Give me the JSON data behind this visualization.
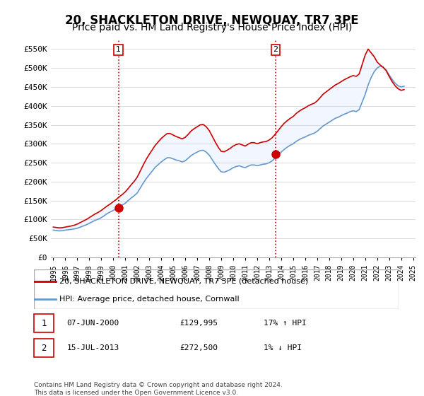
{
  "title": "20, SHACKLETON DRIVE, NEWQUAY, TR7 3PE",
  "subtitle": "Price paid vs. HM Land Registry's House Price Index (HPI)",
  "title_fontsize": 12,
  "subtitle_fontsize": 10,
  "ylim": [
    0,
    575000
  ],
  "yticks": [
    0,
    50000,
    100000,
    150000,
    200000,
    250000,
    300000,
    350000,
    400000,
    450000,
    500000,
    550000
  ],
  "ytick_labels": [
    "£0",
    "£50K",
    "£100K",
    "£150K",
    "£200K",
    "£250K",
    "£300K",
    "£350K",
    "£400K",
    "£450K",
    "£500K",
    "£550K"
  ],
  "xtick_years": [
    1995,
    1996,
    1997,
    1998,
    1999,
    2000,
    2001,
    2002,
    2003,
    2004,
    2005,
    2006,
    2007,
    2008,
    2009,
    2010,
    2011,
    2012,
    2013,
    2014,
    2015,
    2016,
    2017,
    2018,
    2019,
    2020,
    2021,
    2022,
    2023,
    2024,
    2025
  ],
  "red_line_color": "#cc0000",
  "blue_line_color": "#6699cc",
  "fill_color": "#cce0ff",
  "vline_color": "#cc0000",
  "vline_style": ":",
  "transaction1_x": 2000.44,
  "transaction1_y": 129995,
  "transaction1_label": "1",
  "transaction2_x": 2013.54,
  "transaction2_y": 272500,
  "transaction2_label": "2",
  "marker_color": "#cc0000",
  "marker_size": 8,
  "legend_label_red": "20, SHACKLETON DRIVE, NEWQUAY, TR7 3PE (detached house)",
  "legend_label_blue": "HPI: Average price, detached house, Cornwall",
  "table_rows": [
    {
      "num": "1",
      "date": "07-JUN-2000",
      "price": "£129,995",
      "change": "17% ↑ HPI"
    },
    {
      "num": "2",
      "date": "15-JUL-2013",
      "price": "£272,500",
      "change": "1% ↓ HPI"
    }
  ],
  "footer_text": "Contains HM Land Registry data © Crown copyright and database right 2024.\nThis data is licensed under the Open Government Licence v3.0.",
  "background_color": "#ffffff",
  "grid_color": "#dddddd",
  "hpi_data_x": [
    1995.0,
    1995.25,
    1995.5,
    1995.75,
    1996.0,
    1996.25,
    1996.5,
    1996.75,
    1997.0,
    1997.25,
    1997.5,
    1997.75,
    1998.0,
    1998.25,
    1998.5,
    1998.75,
    1999.0,
    1999.25,
    1999.5,
    1999.75,
    2000.0,
    2000.25,
    2000.5,
    2000.75,
    2001.0,
    2001.25,
    2001.5,
    2001.75,
    2002.0,
    2002.25,
    2002.5,
    2002.75,
    2003.0,
    2003.25,
    2003.5,
    2003.75,
    2004.0,
    2004.25,
    2004.5,
    2004.75,
    2005.0,
    2005.25,
    2005.5,
    2005.75,
    2006.0,
    2006.25,
    2006.5,
    2006.75,
    2007.0,
    2007.25,
    2007.5,
    2007.75,
    2008.0,
    2008.25,
    2008.5,
    2008.75,
    2009.0,
    2009.25,
    2009.5,
    2009.75,
    2010.0,
    2010.25,
    2010.5,
    2010.75,
    2011.0,
    2011.25,
    2011.5,
    2011.75,
    2012.0,
    2012.25,
    2012.5,
    2012.75,
    2013.0,
    2013.25,
    2013.5,
    2013.75,
    2014.0,
    2014.25,
    2014.5,
    2014.75,
    2015.0,
    2015.25,
    2015.5,
    2015.75,
    2016.0,
    2016.25,
    2016.5,
    2016.75,
    2017.0,
    2017.25,
    2017.5,
    2017.75,
    2018.0,
    2018.25,
    2018.5,
    2018.75,
    2019.0,
    2019.25,
    2019.5,
    2019.75,
    2020.0,
    2020.25,
    2020.5,
    2020.75,
    2021.0,
    2021.25,
    2021.5,
    2021.75,
    2022.0,
    2022.25,
    2022.5,
    2022.75,
    2023.0,
    2023.25,
    2023.5,
    2023.75,
    2024.0,
    2024.25
  ],
  "hpi_data_y": [
    72000,
    71000,
    70000,
    70500,
    72000,
    73000,
    74000,
    75000,
    77000,
    80000,
    83000,
    86000,
    90000,
    94000,
    98000,
    101000,
    105000,
    110000,
    116000,
    120000,
    124000,
    128000,
    133000,
    138000,
    143000,
    150000,
    157000,
    163000,
    170000,
    183000,
    196000,
    208000,
    218000,
    228000,
    238000,
    245000,
    252000,
    258000,
    263000,
    263000,
    260000,
    257000,
    255000,
    252000,
    255000,
    262000,
    269000,
    274000,
    278000,
    282000,
    283000,
    278000,
    270000,
    258000,
    246000,
    235000,
    226000,
    225000,
    228000,
    232000,
    237000,
    240000,
    242000,
    239000,
    237000,
    241000,
    244000,
    244000,
    242000,
    244000,
    246000,
    247000,
    250000,
    255000,
    262000,
    270000,
    278000,
    285000,
    291000,
    296000,
    300000,
    306000,
    311000,
    315000,
    318000,
    322000,
    325000,
    328000,
    333000,
    340000,
    347000,
    352000,
    357000,
    362000,
    367000,
    370000,
    374000,
    378000,
    381000,
    385000,
    387000,
    385000,
    390000,
    410000,
    430000,
    455000,
    475000,
    490000,
    500000,
    505000,
    502000,
    495000,
    482000,
    470000,
    460000,
    453000,
    450000,
    452000
  ],
  "red_data_x": [
    1995.0,
    1995.25,
    1995.5,
    1995.75,
    1996.0,
    1996.25,
    1996.5,
    1996.75,
    1997.0,
    1997.25,
    1997.5,
    1997.75,
    1998.0,
    1998.25,
    1998.5,
    1998.75,
    1999.0,
    1999.25,
    1999.5,
    1999.75,
    2000.0,
    2000.25,
    2000.5,
    2000.75,
    2001.0,
    2001.25,
    2001.5,
    2001.75,
    2002.0,
    2002.25,
    2002.5,
    2002.75,
    2003.0,
    2003.25,
    2003.5,
    2003.75,
    2004.0,
    2004.25,
    2004.5,
    2004.75,
    2005.0,
    2005.25,
    2005.5,
    2005.75,
    2006.0,
    2006.25,
    2006.5,
    2006.75,
    2007.0,
    2007.25,
    2007.5,
    2007.75,
    2008.0,
    2008.25,
    2008.5,
    2008.75,
    2009.0,
    2009.25,
    2009.5,
    2009.75,
    2010.0,
    2010.25,
    2010.5,
    2010.75,
    2011.0,
    2011.25,
    2011.5,
    2011.75,
    2012.0,
    2012.25,
    2012.5,
    2012.75,
    2013.0,
    2013.25,
    2013.5,
    2013.75,
    2014.0,
    2014.25,
    2014.5,
    2014.75,
    2015.0,
    2015.25,
    2015.5,
    2015.75,
    2016.0,
    2016.25,
    2016.5,
    2016.75,
    2017.0,
    2017.25,
    2017.5,
    2017.75,
    2018.0,
    2018.25,
    2018.5,
    2018.75,
    2019.0,
    2019.25,
    2019.5,
    2019.75,
    2020.0,
    2020.25,
    2020.5,
    2020.75,
    2021.0,
    2021.25,
    2021.5,
    2021.75,
    2022.0,
    2022.25,
    2022.5,
    2022.75,
    2023.0,
    2023.25,
    2023.5,
    2023.75,
    2024.0,
    2024.25
  ],
  "red_data_y": [
    80000,
    79000,
    78000,
    78500,
    80000,
    81500,
    83000,
    85000,
    88000,
    92000,
    96000,
    100000,
    105000,
    110000,
    115000,
    119000,
    124000,
    129995,
    136000,
    141000,
    147000,
    153000,
    160000,
    166000,
    173000,
    182000,
    192000,
    201000,
    212000,
    228000,
    244000,
    259000,
    272000,
    284000,
    296000,
    305000,
    314000,
    321000,
    327000,
    327000,
    323000,
    319000,
    316000,
    313000,
    317000,
    325000,
    334000,
    340000,
    345000,
    350000,
    351000,
    345000,
    335000,
    320000,
    305000,
    291000,
    280000,
    279000,
    283000,
    288000,
    294000,
    298000,
    300000,
    297000,
    294000,
    299000,
    303000,
    303000,
    300000,
    303000,
    305000,
    306000,
    310000,
    316000,
    325000,
    335000,
    345000,
    354000,
    361000,
    367000,
    372000,
    380000,
    386000,
    391000,
    395000,
    400000,
    404000,
    407000,
    413000,
    422000,
    431000,
    437000,
    443000,
    449000,
    455000,
    459000,
    464000,
    469000,
    473000,
    477000,
    480000,
    478000,
    484000,
    509000,
    534000,
    550000,
    540000,
    530000,
    516000,
    508000,
    502000,
    493000,
    478000,
    464000,
    453000,
    445000,
    441000,
    443000
  ]
}
